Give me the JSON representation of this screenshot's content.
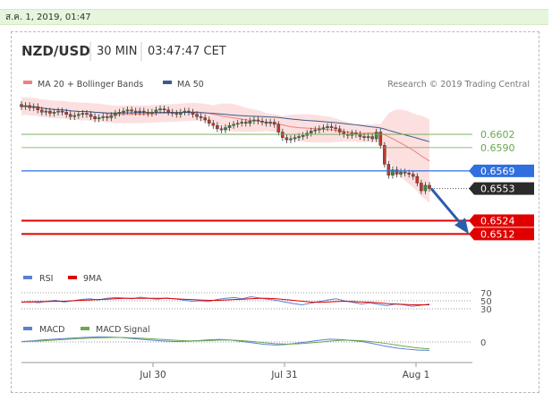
{
  "timestamp": "ส.ค. 1, 2019, 01:47",
  "header": {
    "symbol": "NZD/USD",
    "timeframe": "30 MIN",
    "time": "03:47:47 CET"
  },
  "legend": {
    "ma20": "MA 20 + Bollinger Bands",
    "ma50": "MA 50",
    "credit": "Research © 2019 Trading Central"
  },
  "colors": {
    "bull": "#3a8a3a",
    "bear": "#c0392b",
    "band": "#fbd5d5",
    "ma20": "#f08080",
    "ma50": "#3b5a8f",
    "green_level": "#6aa84f",
    "blue_level": "#2f6fe0",
    "red_level": "#e00000",
    "dark_label": "#2b2b2b",
    "arrow": "#2a5ea8"
  },
  "chart_data": {
    "type": "line",
    "title": "NZD/USD",
    "xlabel": "",
    "ylabel": "",
    "ylim": [
      0.6505,
      0.6636
    ],
    "x_ticks": [
      "Jul 30",
      "Jul 31",
      "Aug 1"
    ],
    "price_series": [
      0.6627,
      0.6628,
      0.6626,
      0.6627,
      0.6624,
      0.6622,
      0.6623,
      0.6621,
      0.6622,
      0.6623,
      0.6622,
      0.662,
      0.6618,
      0.6619,
      0.662,
      0.6621,
      0.662,
      0.6618,
      0.6616,
      0.6617,
      0.6618,
      0.6617,
      0.6619,
      0.6621,
      0.6622,
      0.6623,
      0.6624,
      0.6623,
      0.6622,
      0.6623,
      0.6622,
      0.6621,
      0.6622,
      0.6624,
      0.6625,
      0.6624,
      0.6622,
      0.6621,
      0.662,
      0.6622,
      0.6623,
      0.6622,
      0.662,
      0.6618,
      0.6617,
      0.6615,
      0.6612,
      0.661,
      0.6607,
      0.6606,
      0.6608,
      0.661,
      0.6611,
      0.6612,
      0.6613,
      0.6612,
      0.6614,
      0.6615,
      0.6614,
      0.6613,
      0.6612,
      0.6613,
      0.6611,
      0.6604,
      0.6599,
      0.6597,
      0.6598,
      0.6599,
      0.66,
      0.6601,
      0.6603,
      0.6605,
      0.6606,
      0.6607,
      0.6608,
      0.6609,
      0.6608,
      0.6607,
      0.6604,
      0.6602,
      0.6601,
      0.6603,
      0.6602,
      0.66,
      0.6599,
      0.66,
      0.6598,
      0.6604,
      0.6592,
      0.6575,
      0.6565,
      0.657,
      0.6566,
      0.6568,
      0.6567,
      0.6566,
      0.6564,
      0.6558,
      0.6551,
      0.6556,
      0.6553
    ],
    "levels": [
      {
        "value": 0.6602,
        "label": "0.6602",
        "kind": "green"
      },
      {
        "value": 0.659,
        "label": "0.6590",
        "kind": "green"
      },
      {
        "value": 0.6569,
        "label": "0.6569",
        "kind": "blue"
      },
      {
        "value": 0.6553,
        "label": "0.6553",
        "kind": "current"
      },
      {
        "value": 0.6524,
        "label": "0.6524",
        "kind": "red"
      },
      {
        "value": 0.6512,
        "label": "0.6512",
        "kind": "red"
      }
    ],
    "rsi": {
      "legend": [
        "RSI",
        "9MA"
      ],
      "levels": [
        "70",
        "50",
        "30"
      ],
      "rsi_values": [
        46,
        48,
        45,
        49,
        51,
        47,
        50,
        53,
        55,
        52,
        56,
        58,
        57,
        55,
        59,
        56,
        54,
        57,
        55,
        52,
        49,
        50,
        48,
        53,
        56,
        58,
        55,
        60,
        57,
        54,
        51,
        47,
        43,
        40,
        44,
        48,
        52,
        55,
        50,
        46,
        42,
        45,
        41,
        38,
        42,
        40,
        36,
        39,
        42
      ],
      "ma_values": [
        47,
        47,
        48,
        48,
        49,
        49,
        50,
        51,
        52,
        53,
        54,
        55,
        56,
        56,
        56,
        56,
        56,
        56,
        55,
        54,
        53,
        52,
        51,
        51,
        52,
        53,
        54,
        55,
        56,
        56,
        55,
        53,
        51,
        49,
        47,
        46,
        47,
        48,
        49,
        48,
        47,
        46,
        45,
        43,
        42,
        41,
        40,
        40,
        40
      ]
    },
    "macd": {
      "legend": [
        "MACD",
        "MACD Signal"
      ],
      "zero_label": "0",
      "macd_values": [
        0.2,
        0.5,
        0.9,
        1.2,
        1.5,
        1.8,
        2.0,
        2.2,
        2.1,
        1.9,
        1.5,
        1.1,
        0.7,
        0.4,
        0.2,
        0.3,
        0.6,
        0.9,
        1.1,
        0.8,
        0.2,
        -0.4,
        -1.0,
        -1.3,
        -1.1,
        -0.5,
        0.1,
        0.7,
        1.2,
        1.0,
        0.6,
        0.1,
        -0.8,
        -1.8,
        -2.6,
        -3.1,
        -3.5,
        -3.6
      ],
      "signal_values": [
        0.1,
        0.3,
        0.5,
        0.8,
        1.1,
        1.4,
        1.6,
        1.8,
        1.9,
        1.9,
        1.8,
        1.6,
        1.3,
        1.0,
        0.7,
        0.5,
        0.5,
        0.6,
        0.8,
        0.8,
        0.6,
        0.2,
        -0.3,
        -0.7,
        -0.9,
        -0.8,
        -0.5,
        -0.1,
        0.4,
        0.7,
        0.7,
        0.5,
        0.0,
        -0.6,
        -1.3,
        -2.0,
        -2.6,
        -3.0
      ]
    }
  }
}
